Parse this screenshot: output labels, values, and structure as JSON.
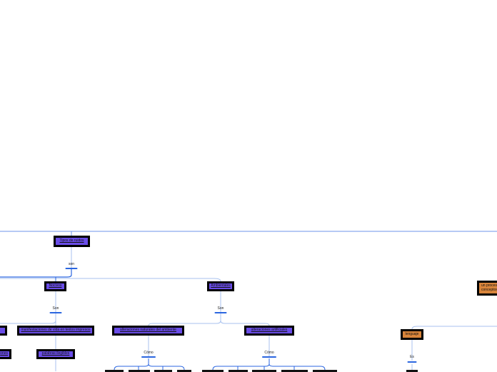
{
  "nodes": {
    "root": "Tipos de ruidos",
    "nocivos": "Nocivos",
    "ambientales": "Ambientales",
    "left_a": "",
    "left_b": "ones",
    "manifestaciones": "manifestaciones de vida en textos impresos",
    "palabras": "palabras ilegibles",
    "naturales": "alteraciones naturales del ambiente",
    "artificiales": "alteraciones artificiales",
    "lenguaje": "lenguaje",
    "proceso": "un proceso conceptos"
  },
  "links": {
    "son_root": "son",
    "son_nocivos": "Son",
    "son_ambientales": "Son",
    "como_naturales": "Cómo",
    "como_artificiales": "Cómo",
    "es_lenguaje": "Es"
  },
  "colors": {
    "node_purple": "#6a4de8",
    "node_orange": "#d9853b",
    "connector": "#2b66e0",
    "faint_line": "#a9c2ef"
  }
}
